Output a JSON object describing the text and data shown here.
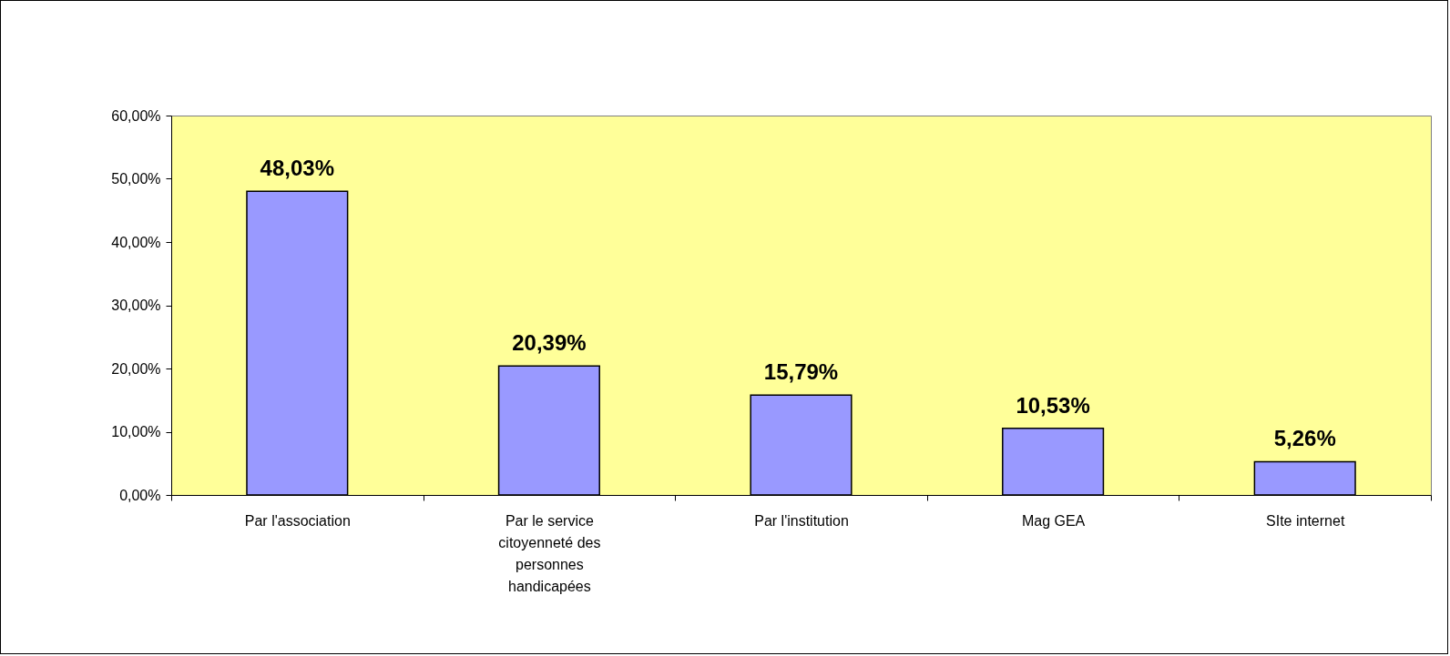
{
  "chart_data": {
    "type": "bar",
    "categories": [
      "Par l'association",
      "Par le service citoyenneté des personnes handicapées",
      "Par l'institution",
      "Mag GEA",
      "SIte internet"
    ],
    "values": [
      48.03,
      20.39,
      15.79,
      10.53,
      5.26
    ],
    "value_labels": [
      "48,03%",
      "20,39%",
      "15,79%",
      "10,53%",
      "5,26%"
    ],
    "color": "#9999ff",
    "ylim": [
      0,
      60
    ],
    "yticks": [
      {
        "value": 0,
        "label": "0,00%"
      },
      {
        "value": 10,
        "label": "10,00%"
      },
      {
        "value": 20,
        "label": "20,00%"
      },
      {
        "value": 30,
        "label": "30,00%"
      },
      {
        "value": 40,
        "label": "40,00%"
      },
      {
        "value": 50,
        "label": "50,00%"
      },
      {
        "value": 60,
        "label": "60,00%"
      }
    ],
    "grid": false
  }
}
